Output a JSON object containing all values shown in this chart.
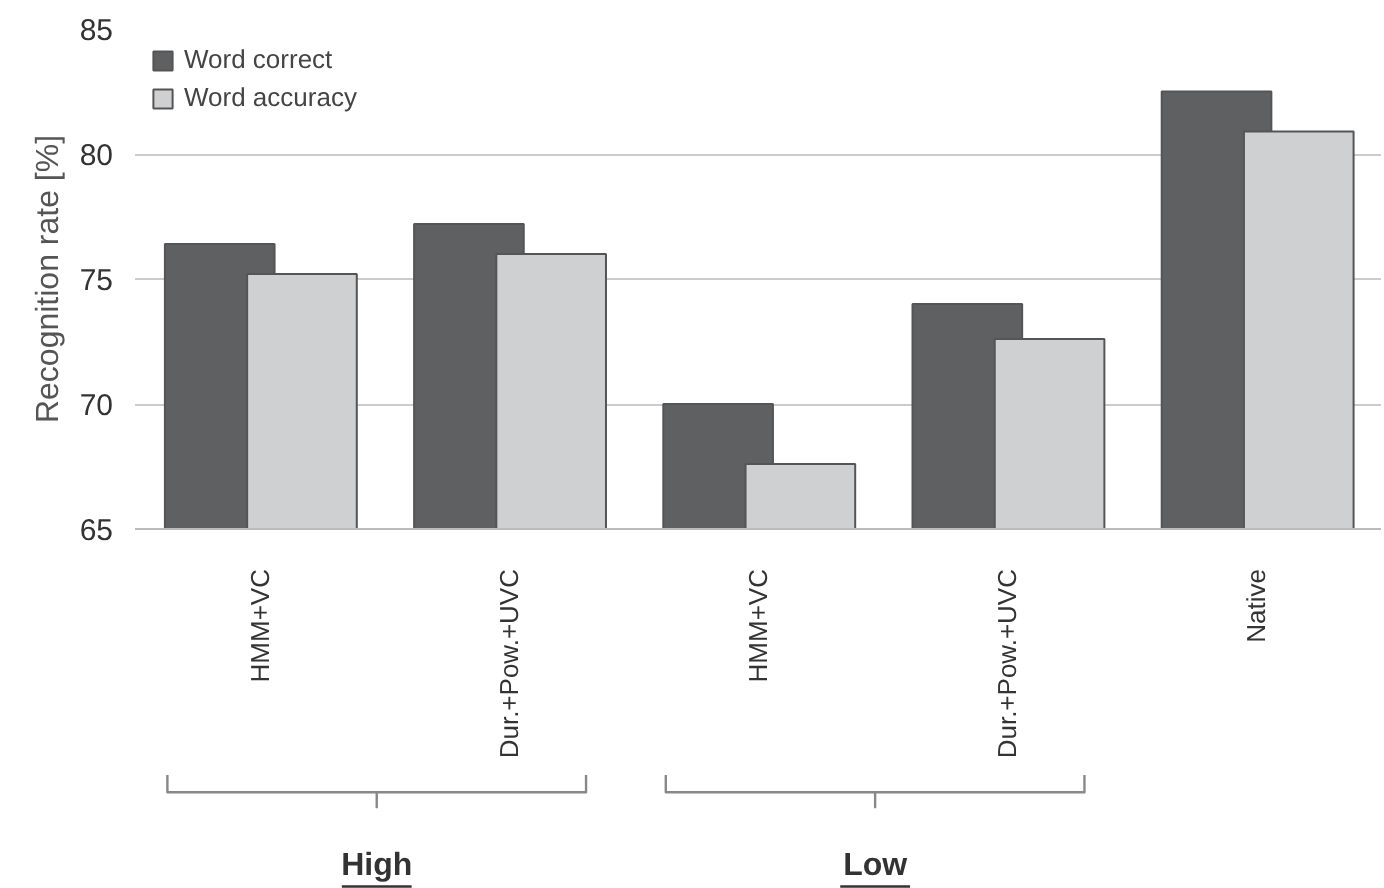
{
  "chart_data": {
    "type": "bar",
    "ylabel": "Recognition rate [%]",
    "categories": [
      "HMM+VC",
      "Dur.+Pow.+UVC",
      "HMM+VC",
      "Dur.+Pow.+UVC",
      "Native"
    ],
    "series": [
      {
        "name": "Word correct",
        "color": "#5f6062",
        "values": [
          76.4,
          77.2,
          70.0,
          74.0,
          82.5
        ]
      },
      {
        "name": "Word accuracy",
        "color": "#cfd0d2",
        "values": [
          75.2,
          76.0,
          67.6,
          72.6,
          80.9
        ]
      }
    ],
    "ylim": [
      65,
      85
    ],
    "yticks": [
      65,
      70,
      75,
      80,
      85
    ],
    "grid": "y",
    "legend": "top left",
    "annotations": [
      "High",
      "Low"
    ]
  }
}
